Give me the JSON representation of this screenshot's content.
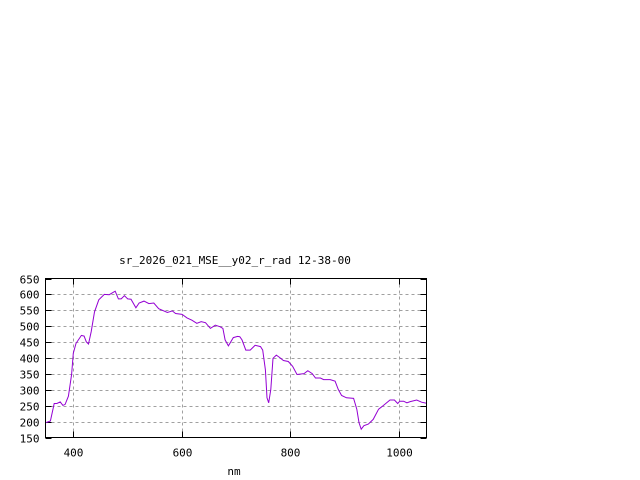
{
  "chart_data": {
    "type": "line",
    "title": "sr_2026_021_MSE__y02_r_rad 12-38-00",
    "xlabel": "nm",
    "ylabel": "",
    "xlim": [
      350,
      1050
    ],
    "ylim": [
      150,
      650
    ],
    "xticks": [
      400,
      600,
      800,
      1000
    ],
    "yticks": [
      150,
      200,
      250,
      300,
      350,
      400,
      450,
      500,
      550,
      600,
      650
    ],
    "grid": true,
    "legend": "none",
    "colors": {
      "series": "#9400d3",
      "grid": "#a0a0a0",
      "axes": "#000000"
    },
    "series": [
      {
        "x": [
          351,
          359,
          366,
          371,
          377,
          382,
          386,
          392,
          398,
          401,
          406,
          416,
          421,
          425,
          429,
          434,
          440,
          448,
          458,
          467,
          473,
          478,
          484,
          489,
          495,
          501,
          507,
          516,
          522,
          531,
          540,
          549,
          558,
          574,
          583,
          589,
          601,
          610,
          619,
          628,
          636,
          644,
          653,
          662,
          671,
          676,
          680,
          686,
          695,
          703,
          707,
          711,
          718,
          726,
          735,
          745,
          749,
          754,
          757,
          760,
          764,
          768,
          774,
          780,
          787,
          796,
          804,
          812,
          825,
          832,
          840,
          846,
          855,
          861,
          873,
          882,
          888,
          894,
          903,
          916,
          922,
          926,
          930,
          935,
          943,
          952,
          962,
          971,
          983,
          991,
          997,
          1001,
          1008,
          1014,
          1020,
          1032,
          1041,
          1050
        ],
        "y": [
          197,
          202,
          257,
          257,
          262,
          251,
          254,
          280,
          348,
          415,
          446,
          471,
          469,
          451,
          444,
          483,
          545,
          583,
          600,
          599,
          605,
          610,
          586,
          586,
          596,
          586,
          585,
          558,
          573,
          579,
          571,
          573,
          555,
          543,
          548,
          540,
          537,
          526,
          519,
          509,
          514,
          511,
          493,
          503,
          498,
          493,
          457,
          438,
          464,
          468,
          467,
          457,
          425,
          425,
          440,
          436,
          425,
          363,
          275,
          259,
          301,
          399,
          409,
          402,
          392,
          389,
          374,
          348,
          351,
          360,
          351,
          337,
          337,
          332,
          332,
          327,
          301,
          282,
          275,
          273,
          239,
          197,
          176,
          187,
          192,
          207,
          239,
          251,
          268,
          268,
          257,
          264,
          264,
          259,
          263,
          268,
          261,
          258
        ]
      }
    ]
  }
}
